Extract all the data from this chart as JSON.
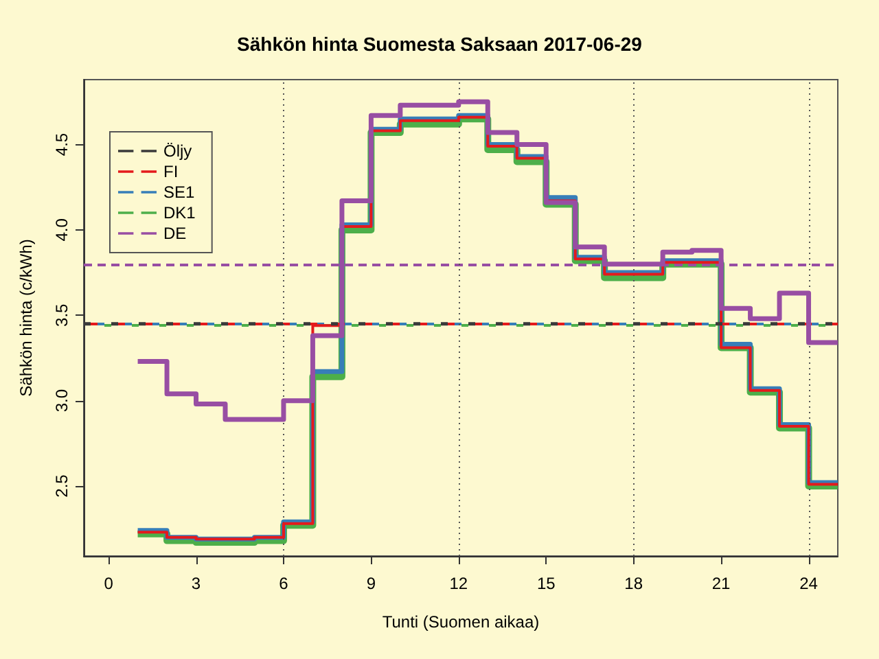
{
  "chart_data": {
    "type": "step",
    "title": "Sähkön hinta Suomesta Saksaan 2017-06-29",
    "xlabel": "Tunti (Suomen aikaa)",
    "ylabel": "Sähkön hinta (c/kWh)",
    "x": [
      1,
      2,
      3,
      4,
      5,
      6,
      7,
      8,
      9,
      10,
      11,
      12,
      13,
      14,
      15,
      16,
      17,
      18,
      19,
      20,
      21,
      22,
      23,
      24,
      25
    ],
    "series": [
      {
        "name": "Öljy",
        "type": "line",
        "line_style": "dashed",
        "color": "#3a3a3a",
        "x": [
          -0.85,
          25
        ],
        "values": [
          3.45,
          3.45
        ]
      },
      {
        "name": "FI",
        "color": "#e41a1c",
        "values": [
          2.23,
          2.2,
          2.19,
          2.19,
          2.2,
          2.28,
          3.44,
          4.02,
          4.58,
          4.64,
          4.64,
          4.66,
          4.49,
          4.42,
          4.17,
          3.83,
          3.74,
          3.74,
          3.81,
          3.81,
          3.31,
          3.06,
          2.85,
          2.51,
          2.51
        ]
      },
      {
        "name": "SE1",
        "color": "#377eb8",
        "values": [
          2.24,
          2.2,
          2.19,
          2.19,
          2.2,
          2.29,
          3.17,
          4.03,
          4.59,
          4.65,
          4.65,
          4.67,
          4.5,
          4.43,
          4.19,
          3.84,
          3.75,
          3.75,
          3.82,
          3.82,
          3.33,
          3.07,
          2.86,
          2.52,
          2.52
        ]
      },
      {
        "name": "DK1",
        "color": "#4daf4a",
        "values": [
          2.22,
          2.18,
          2.17,
          2.17,
          2.18,
          2.27,
          3.14,
          4.0,
          4.57,
          4.62,
          4.62,
          4.65,
          4.47,
          4.4,
          4.15,
          3.82,
          3.72,
          3.72,
          3.8,
          3.8,
          3.31,
          3.05,
          2.84,
          2.5,
          2.5
        ]
      },
      {
        "name": "DE",
        "color": "#984ea3",
        "values": [
          3.23,
          3.04,
          2.98,
          2.89,
          2.89,
          3.0,
          3.38,
          4.17,
          4.67,
          4.73,
          4.73,
          4.75,
          4.57,
          4.5,
          4.16,
          3.9,
          3.8,
          3.8,
          3.87,
          3.88,
          3.54,
          3.48,
          3.63,
          3.34,
          3.34
        ]
      }
    ],
    "ref_lines": [
      {
        "axis": "y",
        "value": 3.45,
        "color": "#e41a1c",
        "line_style": "dashed"
      },
      {
        "axis": "y",
        "value": 3.45,
        "color": "#377eb8",
        "line_style": "dashed"
      },
      {
        "axis": "y",
        "value": 3.44,
        "color": "#4daf4a",
        "line_style": "dashed"
      },
      {
        "axis": "y",
        "value": 3.8,
        "color": "#984ea3",
        "line_style": "dashed"
      },
      {
        "axis": "x",
        "value": 6,
        "color": "#555555",
        "line_style": "dotted"
      },
      {
        "axis": "x",
        "value": 12,
        "color": "#555555",
        "line_style": "dotted"
      },
      {
        "axis": "x",
        "value": 18,
        "color": "#555555",
        "line_style": "dotted"
      },
      {
        "axis": "x",
        "value": 24,
        "color": "#555555",
        "line_style": "dotted"
      }
    ],
    "xlim": [
      -0.85,
      25
    ],
    "xticks": [
      0,
      3,
      6,
      9,
      12,
      15,
      18,
      21,
      24
    ],
    "ylim": [
      2.09,
      4.88
    ],
    "yticks": [
      {
        "value": 2.5,
        "label": "2.5"
      },
      {
        "value": 3,
        "label": "3.0"
      },
      {
        "value": 3.5,
        "label": "3.5"
      },
      {
        "value": 4,
        "label": "4.0"
      },
      {
        "value": 4.5,
        "label": "4.5"
      }
    ],
    "grid": false,
    "legend": "top left",
    "line_style": "solid",
    "marker": "none"
  }
}
